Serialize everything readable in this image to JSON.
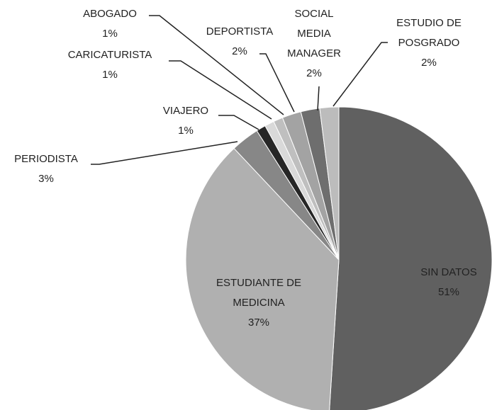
{
  "chart_data": {
    "type": "pie",
    "categories": [
      "SIN DATOS",
      "ESTUDIANTE DE MEDICINA",
      "PERIODISTA",
      "VIAJERO",
      "CARICATURISTA",
      "ABOGADO",
      "DEPORTISTA",
      "SOCIAL MEDIA MANAGER",
      "ESTUDIO DE POSGRADO"
    ],
    "values": [
      51,
      37,
      3,
      1,
      1,
      1,
      2,
      2,
      2
    ],
    "value_labels": [
      "51%",
      "37%",
      "3%",
      "1%",
      "1%",
      "1%",
      "2%",
      "2%",
      "2%"
    ],
    "colors": [
      "#606060",
      "#b0b0b0",
      "#878787",
      "#262626",
      "#d9d9d9",
      "#bfbfbf",
      "#a3a3a3",
      "#6e6e6e",
      "#bcbcbc"
    ]
  }
}
